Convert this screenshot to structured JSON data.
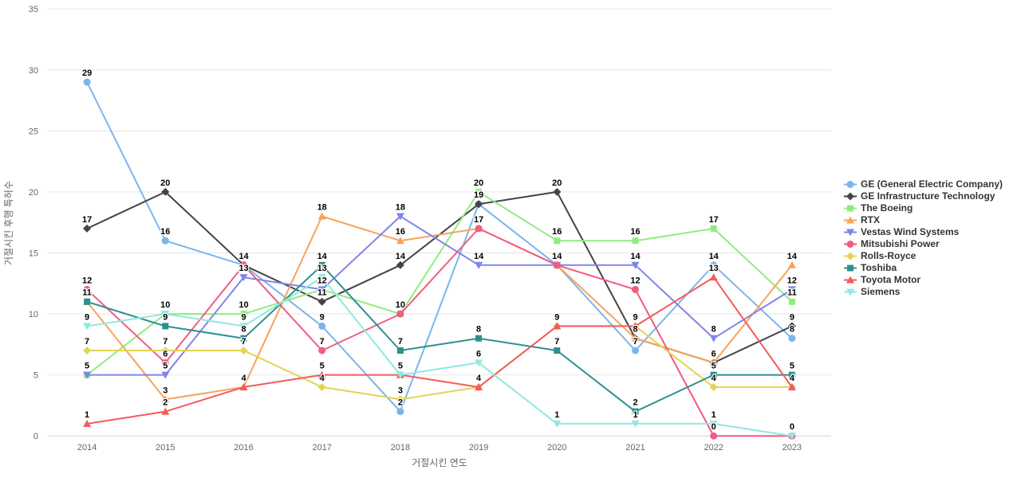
{
  "chart_data": {
    "type": "line",
    "x": [
      2014,
      2015,
      2016,
      2017,
      2018,
      2019,
      2020,
      2021,
      2022,
      2023
    ],
    "xlabel": "거절시킨 연도",
    "ylabel": "거절시킨 후행 특허수",
    "ylim": [
      0,
      35
    ],
    "yticks": [
      0,
      5,
      10,
      15,
      20,
      25,
      30,
      35
    ],
    "grid": true,
    "legend_position": "right",
    "series": [
      {
        "name": "GE (General Electric Company)",
        "color": "#7cb5ec",
        "marker": "circle",
        "values": [
          29,
          16,
          14,
          9,
          2,
          19,
          14,
          7,
          14,
          8
        ]
      },
      {
        "name": "GE Infrastructure Technology",
        "color": "#434348",
        "marker": "diamond",
        "values": [
          17,
          20,
          14,
          11,
          14,
          19,
          20,
          8,
          6,
          9
        ]
      },
      {
        "name": "The Boeing",
        "color": "#90ed7d",
        "marker": "square",
        "values": [
          5,
          10,
          10,
          12,
          10,
          20,
          16,
          16,
          17,
          11
        ]
      },
      {
        "name": "RTX",
        "color": "#f7a35c",
        "marker": "triangle",
        "values": [
          11,
          3,
          4,
          18,
          16,
          17,
          14,
          8,
          6,
          14
        ]
      },
      {
        "name": "Vestas Wind Systems",
        "color": "#8085e9",
        "marker": "triangle-down",
        "values": [
          5,
          5,
          13,
          12,
          18,
          14,
          14,
          14,
          8,
          12
        ]
      },
      {
        "name": "Mitsubishi Power",
        "color": "#f15c80",
        "marker": "circle",
        "values": [
          12,
          6,
          14,
          7,
          10,
          17,
          14,
          12,
          0,
          0
        ]
      },
      {
        "name": "Rolls-Royce",
        "color": "#e4d354",
        "marker": "diamond",
        "values": [
          7,
          7,
          7,
          4,
          3,
          4,
          9,
          9,
          4,
          4
        ]
      },
      {
        "name": "Toshiba",
        "color": "#2b908f",
        "marker": "square",
        "values": [
          11,
          9,
          8,
          14,
          7,
          8,
          7,
          2,
          5,
          5
        ]
      },
      {
        "name": "Toyota Motor",
        "color": "#f45b5b",
        "marker": "triangle",
        "values": [
          1,
          2,
          4,
          5,
          5,
          4,
          9,
          9,
          13,
          4
        ]
      },
      {
        "name": "Siemens",
        "color": "#91e8e1",
        "marker": "triangle-down",
        "values": [
          9,
          10,
          9,
          13,
          5,
          6,
          1,
          1,
          1,
          0
        ]
      }
    ],
    "colors": {
      "axis_line": "#ccd6eb",
      "gridline": "#e6e6e6",
      "tick_text": "#666666",
      "legend_text": "#333333",
      "data_label": "#000000",
      "background": "#ffffff"
    }
  }
}
